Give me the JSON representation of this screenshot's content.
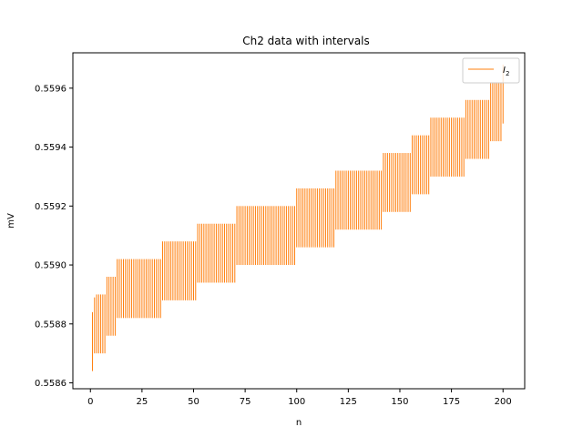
{
  "chart_data": {
    "type": "interval",
    "title": "Ch2 data with intervals",
    "xlabel": "n",
    "ylabel": "mV",
    "xlim": [
      -8.5,
      210.5
    ],
    "ylim": [
      0.55858,
      0.55972
    ],
    "xticks": [
      0,
      25,
      50,
      75,
      100,
      125,
      150,
      175,
      200
    ],
    "yticks": [
      0.5586,
      0.5588,
      0.559,
      0.5592,
      0.5594,
      0.5596
    ],
    "ytick_labels": [
      "0.5586",
      "0.5588",
      "0.5590",
      "0.5592",
      "0.5594",
      "0.5596"
    ],
    "grid": false,
    "legend": {
      "position": "top-right"
    },
    "colors": {
      "series": "#ff7f0e",
      "axes": "#000000"
    },
    "series": [
      {
        "name": "I",
        "name_subscript": "2",
        "x_start": 1,
        "x_end": 200,
        "x_step": 1,
        "intervals": [
          {
            "from": 1,
            "to": 1,
            "low": 0.55864,
            "high": 0.55884
          },
          {
            "from": 2,
            "to": 2,
            "low": 0.5587,
            "high": 0.55889
          },
          {
            "from": 3,
            "to": 7,
            "low": 0.5587,
            "high": 0.5589
          },
          {
            "from": 8,
            "to": 12,
            "low": 0.55876,
            "high": 0.55896
          },
          {
            "from": 13,
            "to": 34,
            "low": 0.55882,
            "high": 0.55902
          },
          {
            "from": 35,
            "to": 51,
            "low": 0.55888,
            "high": 0.55908
          },
          {
            "from": 52,
            "to": 70,
            "low": 0.55894,
            "high": 0.55914
          },
          {
            "from": 71,
            "to": 99,
            "low": 0.559,
            "high": 0.5592
          },
          {
            "from": 100,
            "to": 118,
            "low": 0.55906,
            "high": 0.55926
          },
          {
            "from": 119,
            "to": 141,
            "low": 0.55912,
            "high": 0.55932
          },
          {
            "from": 142,
            "to": 155,
            "low": 0.55918,
            "high": 0.55938
          },
          {
            "from": 156,
            "to": 164,
            "low": 0.55924,
            "high": 0.55944
          },
          {
            "from": 165,
            "to": 181,
            "low": 0.5593,
            "high": 0.5595
          },
          {
            "from": 182,
            "to": 193,
            "low": 0.55936,
            "high": 0.55956
          },
          {
            "from": 194,
            "to": 199,
            "low": 0.55942,
            "high": 0.55962
          },
          {
            "from": 200,
            "to": 200,
            "low": 0.55948,
            "high": 0.55968
          }
        ]
      }
    ]
  }
}
